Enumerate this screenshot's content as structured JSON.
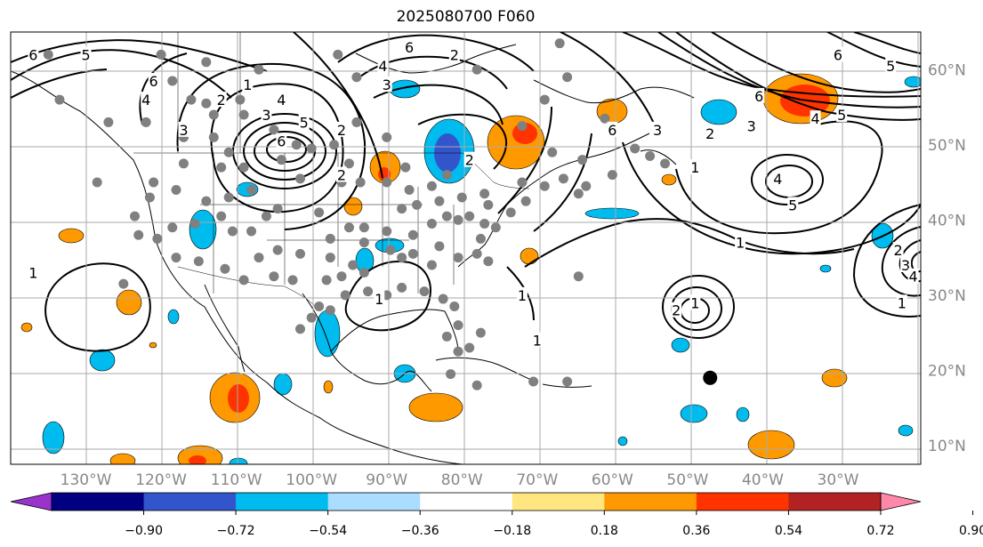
{
  "title": "2025080700 F060",
  "projection": {
    "lon_range": [
      -140,
      -19
    ],
    "lat_range": [
      7.5,
      65
    ]
  },
  "longitude_ticks": [
    {
      "lon": -130,
      "label": "130°W"
    },
    {
      "lon": -120,
      "label": "120°W"
    },
    {
      "lon": -110,
      "label": "110°W"
    },
    {
      "lon": -100,
      "label": "100°W"
    },
    {
      "lon": -90,
      "label": "90°W"
    },
    {
      "lon": -80,
      "label": "80°W"
    },
    {
      "lon": -70,
      "label": "70°W"
    },
    {
      "lon": -60,
      "label": "60°W"
    },
    {
      "lon": -50,
      "label": "50°W"
    },
    {
      "lon": -40,
      "label": "40°W"
    },
    {
      "lon": -30,
      "label": "30°W"
    }
  ],
  "latitude_ticks": [
    {
      "lat": 10,
      "label": "10°N"
    },
    {
      "lat": 20,
      "label": "20°N"
    },
    {
      "lat": 30,
      "label": "30°N"
    },
    {
      "lat": 40,
      "label": "40°N"
    },
    {
      "lat": 50,
      "label": "50°N"
    },
    {
      "lat": 60,
      "label": "60°N"
    }
  ],
  "grid_lon_lines": [
    -140,
    -130,
    -120,
    -110,
    -100,
    -90,
    -80,
    -70,
    -60,
    -50,
    -40,
    -30,
    -20
  ],
  "colorbar": {
    "colors": [
      "#9933cc",
      "#000080",
      "#3355cc",
      "#00bbee",
      "#aaddff",
      "#ffffff",
      "#ffe680",
      "#ff9900",
      "#ff3300",
      "#b22222",
      "#ff88aa"
    ],
    "tick_labels": [
      "−0.90",
      "−0.72",
      "−0.54",
      "−0.36",
      "−0.18",
      "0.18",
      "0.36",
      "0.54",
      "0.72",
      "0.90"
    ],
    "extend": "both"
  },
  "stations": [
    [
      -133.5,
      56
    ],
    [
      -127,
      53
    ],
    [
      -122,
      53
    ],
    [
      -118.5,
      58.5
    ],
    [
      -116,
      56
    ],
    [
      -114,
      55.5
    ],
    [
      -109.5,
      56
    ],
    [
      -113,
      54
    ],
    [
      -109,
      54
    ],
    [
      -117,
      51
    ],
    [
      -113,
      51
    ],
    [
      -111,
      49
    ],
    [
      -105,
      52
    ],
    [
      -102,
      50
    ],
    [
      -100,
      49.5
    ],
    [
      -97,
      50
    ],
    [
      -104,
      48
    ],
    [
      -101.5,
      45.5
    ],
    [
      -109,
      47
    ],
    [
      -112,
      47
    ],
    [
      -117,
      47.5
    ],
    [
      -121,
      45
    ],
    [
      -121.5,
      43
    ],
    [
      -118,
      44
    ],
    [
      -114,
      42.5
    ],
    [
      -111,
      43
    ],
    [
      -108,
      44
    ],
    [
      -104.5,
      41.5
    ],
    [
      -99,
      41
    ],
    [
      -96,
      45
    ],
    [
      -95,
      47.5
    ],
    [
      -93.5,
      45
    ],
    [
      -90,
      45
    ],
    [
      -87.5,
      47
    ],
    [
      -90,
      51
    ],
    [
      -94,
      53
    ],
    [
      -86,
      42
    ],
    [
      -83,
      42.5
    ],
    [
      -84,
      44.5
    ],
    [
      -82,
      46
    ],
    [
      -87,
      44
    ],
    [
      -88,
      41.5
    ],
    [
      -84,
      39.5
    ],
    [
      -86.5,
      38
    ],
    [
      -90,
      38.5
    ],
    [
      -93,
      39
    ],
    [
      -95,
      39
    ],
    [
      -97.5,
      37.5
    ],
    [
      -93,
      37
    ],
    [
      -89.5,
      36
    ],
    [
      -86.5,
      35.5
    ],
    [
      -84,
      34
    ],
    [
      -80.5,
      35
    ],
    [
      -78,
      35.5
    ],
    [
      -76.5,
      34.5
    ],
    [
      -77.5,
      37.5
    ],
    [
      -75.5,
      39
    ],
    [
      -77,
      39.5
    ],
    [
      -79,
      40.5
    ],
    [
      -80.5,
      40
    ],
    [
      -82,
      40.5
    ],
    [
      -80,
      43
    ],
    [
      -77,
      43.5
    ],
    [
      -73.5,
      41
    ],
    [
      -71.5,
      42.5
    ],
    [
      -72,
      45
    ],
    [
      -69,
      44.5
    ],
    [
      -66.5,
      45.5
    ],
    [
      -63.5,
      44.5
    ],
    [
      -60,
      46
    ],
    [
      -64,
      48
    ],
    [
      -68,
      49
    ],
    [
      -72,
      52.5
    ],
    [
      -61,
      53.5
    ],
    [
      -55,
      48.5
    ],
    [
      -53,
      47.5
    ],
    [
      -57,
      49.5
    ],
    [
      -64.5,
      43.5
    ],
    [
      -109,
      32
    ],
    [
      -105,
      32.5
    ],
    [
      -102.5,
      32
    ],
    [
      -98,
      32
    ],
    [
      -96,
      32.5
    ],
    [
      -94.5,
      34
    ],
    [
      -97.5,
      35
    ],
    [
      -101.5,
      35.5
    ],
    [
      -104.5,
      36
    ],
    [
      -107,
      35
    ],
    [
      -111.5,
      33.5
    ],
    [
      -115,
      34.5
    ],
    [
      -118,
      35
    ],
    [
      -120.5,
      37.5
    ],
    [
      -123,
      38
    ],
    [
      -123.5,
      40.5
    ],
    [
      -118.5,
      39
    ],
    [
      -115.5,
      39.5
    ],
    [
      -112,
      40.5
    ],
    [
      -110.5,
      38.5
    ],
    [
      -108,
      38.5
    ],
    [
      -106,
      40.5
    ],
    [
      -97.5,
      28
    ],
    [
      -99,
      28.5
    ],
    [
      -95.5,
      30
    ],
    [
      -92.5,
      30.5
    ],
    [
      -90,
      30
    ],
    [
      -88,
      31
    ],
    [
      -85,
      30.5
    ],
    [
      -82.5,
      29.5
    ],
    [
      -81,
      28.5
    ],
    [
      -80.5,
      26
    ],
    [
      -82,
      24.5
    ],
    [
      -80.5,
      22.5
    ],
    [
      -79,
      23
    ],
    [
      -77.5,
      25
    ],
    [
      -70.5,
      18.5
    ],
    [
      -66,
      18.5
    ],
    [
      -81.5,
      19.5
    ],
    [
      -78,
      18
    ],
    [
      -100,
      27
    ],
    [
      -101.5,
      25.5
    ],
    [
      -64.5,
      32.5
    ],
    [
      -128.5,
      45
    ],
    [
      -125,
      31.5
    ],
    [
      -93,
      33
    ],
    [
      -88,
      35
    ],
    [
      -83,
      36.5
    ],
    [
      -76.5,
      42
    ],
    [
      -67,
      63.5
    ],
    [
      -66,
      59
    ],
    [
      -69,
      56
    ],
    [
      -78,
      60
    ],
    [
      -94,
      59
    ],
    [
      -96.5,
      62
    ],
    [
      -107,
      60
    ],
    [
      -114,
      61
    ],
    [
      -135,
      62
    ],
    [
      -120,
      62
    ]
  ],
  "marker": {
    "lon": -47,
    "lat": 19
  },
  "contour_labels": [
    {
      "lon": -137,
      "lat": 62,
      "text": "6"
    },
    {
      "lon": -130,
      "lat": 62,
      "text": "5"
    },
    {
      "lon": -121,
      "lat": 58.5,
      "text": "6"
    },
    {
      "lon": -122,
      "lat": 56,
      "text": "4"
    },
    {
      "lon": -117,
      "lat": 52,
      "text": "3"
    },
    {
      "lon": -112,
      "lat": 56,
      "text": "2"
    },
    {
      "lon": -108.5,
      "lat": 58,
      "text": "1"
    },
    {
      "lon": -106,
      "lat": 54,
      "text": "3"
    },
    {
      "lon": -104,
      "lat": 50.5,
      "text": "6"
    },
    {
      "lon": -104,
      "lat": 56,
      "text": "4"
    },
    {
      "lon": -101,
      "lat": 53,
      "text": "5"
    },
    {
      "lon": -96,
      "lat": 46,
      "text": "2"
    },
    {
      "lon": -96,
      "lat": 52,
      "text": "2"
    },
    {
      "lon": -90,
      "lat": 58,
      "text": "3"
    },
    {
      "lon": -90.5,
      "lat": 60.5,
      "text": "4"
    },
    {
      "lon": -87,
      "lat": 63,
      "text": "6"
    },
    {
      "lon": -81,
      "lat": 62,
      "text": "2"
    },
    {
      "lon": -72,
      "lat": 30,
      "text": "1"
    },
    {
      "lon": -79,
      "lat": 48,
      "text": "2"
    },
    {
      "lon": -91,
      "lat": 29.5,
      "text": "1"
    },
    {
      "lon": -60,
      "lat": 52,
      "text": "6"
    },
    {
      "lon": -54,
      "lat": 52,
      "text": "3"
    },
    {
      "lon": -49,
      "lat": 47,
      "text": "1"
    },
    {
      "lon": -47,
      "lat": 51.5,
      "text": "2"
    },
    {
      "lon": -40.5,
      "lat": 56.5,
      "text": "6"
    },
    {
      "lon": -41.5,
      "lat": 52.5,
      "text": "3"
    },
    {
      "lon": -38,
      "lat": 45.5,
      "text": "4"
    },
    {
      "lon": -36,
      "lat": 42,
      "text": "5"
    },
    {
      "lon": -33,
      "lat": 53.5,
      "text": "4"
    },
    {
      "lon": -29.5,
      "lat": 54,
      "text": "5"
    },
    {
      "lon": -30,
      "lat": 62,
      "text": "6"
    },
    {
      "lon": -23,
      "lat": 60.5,
      "text": "5"
    },
    {
      "lon": -43,
      "lat": 37,
      "text": "1"
    },
    {
      "lon": -51.5,
      "lat": 28,
      "text": "2"
    },
    {
      "lon": -49,
      "lat": 29,
      "text": "1"
    },
    {
      "lon": -22,
      "lat": 36,
      "text": "2"
    },
    {
      "lon": -21,
      "lat": 34,
      "text": "3"
    },
    {
      "lon": -20,
      "lat": 32.5,
      "text": "4"
    },
    {
      "lon": -21.5,
      "lat": 29,
      "text": "1"
    },
    {
      "lon": -137,
      "lat": 33,
      "text": "1"
    },
    {
      "lon": -70,
      "lat": 24,
      "text": "1"
    }
  ]
}
